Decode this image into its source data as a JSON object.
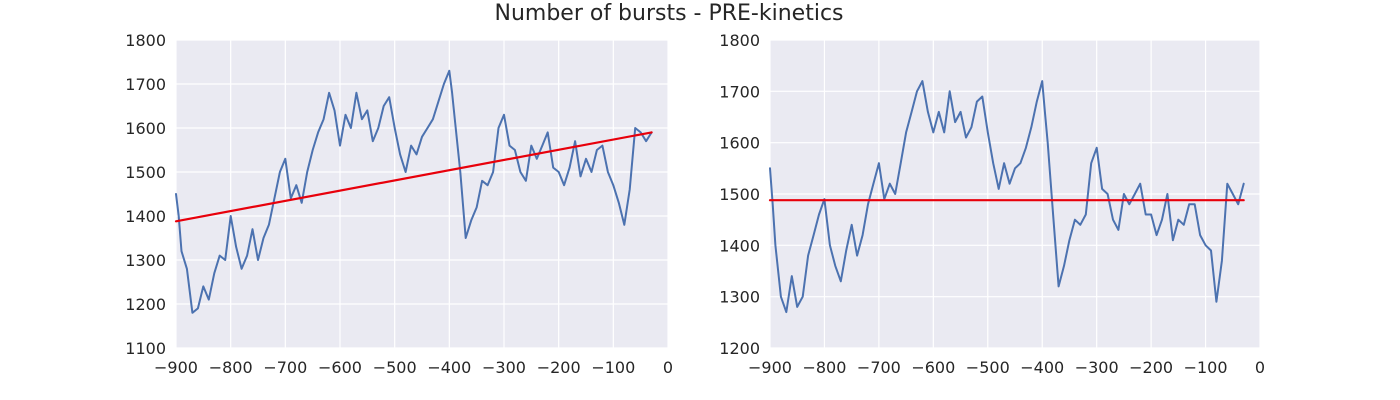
{
  "figure": {
    "title": "Number of bursts - PRE-kinetics"
  },
  "chart_data": [
    {
      "type": "line",
      "xlim": [
        -900,
        0
      ],
      "ylim": [
        1100,
        1800
      ],
      "xticks": [
        -900,
        -800,
        -700,
        -600,
        -500,
        -400,
        -300,
        -200,
        -100,
        0
      ],
      "yticks": [
        1100,
        1200,
        1300,
        1400,
        1500,
        1600,
        1700,
        1800
      ],
      "grid": true,
      "series": [
        {
          "color": "#4c72b0",
          "x": [
            -900,
            -895,
            -890,
            -880,
            -870,
            -860,
            -850,
            -840,
            -830,
            -820,
            -810,
            -800,
            -790,
            -780,
            -770,
            -760,
            -750,
            -740,
            -730,
            -720,
            -710,
            -700,
            -690,
            -680,
            -670,
            -660,
            -650,
            -640,
            -630,
            -620,
            -610,
            -600,
            -590,
            -580,
            -570,
            -560,
            -550,
            -540,
            -530,
            -520,
            -510,
            -500,
            -490,
            -480,
            -470,
            -460,
            -450,
            -440,
            -430,
            -420,
            -410,
            -400,
            -395,
            -390,
            -380,
            -370,
            -360,
            -350,
            -340,
            -330,
            -320,
            -310,
            -300,
            -290,
            -280,
            -270,
            -260,
            -250,
            -240,
            -230,
            -220,
            -210,
            -200,
            -190,
            -180,
            -170,
            -160,
            -150,
            -140,
            -130,
            -120,
            -110,
            -100,
            -90,
            -80,
            -70,
            -60,
            -50,
            -40,
            -30
          ],
          "y": [
            1450,
            1400,
            1320,
            1280,
            1180,
            1190,
            1240,
            1210,
            1270,
            1310,
            1300,
            1400,
            1330,
            1280,
            1310,
            1370,
            1300,
            1350,
            1380,
            1440,
            1500,
            1530,
            1440,
            1470,
            1430,
            1500,
            1550,
            1590,
            1620,
            1680,
            1640,
            1560,
            1630,
            1600,
            1680,
            1620,
            1640,
            1570,
            1600,
            1650,
            1670,
            1600,
            1540,
            1500,
            1560,
            1540,
            1580,
            1600,
            1620,
            1660,
            1700,
            1730,
            1680,
            1620,
            1500,
            1350,
            1390,
            1420,
            1480,
            1470,
            1500,
            1600,
            1630,
            1560,
            1550,
            1500,
            1480,
            1560,
            1530,
            1560,
            1590,
            1510,
            1500,
            1470,
            1510,
            1570,
            1490,
            1530,
            1500,
            1550,
            1560,
            1500,
            1470,
            1430,
            1380,
            1460,
            1600,
            1590,
            1570,
            1590
          ]
        },
        {
          "color": "#e8000b",
          "x": [
            -900,
            -30
          ],
          "y": [
            1388,
            1590
          ]
        }
      ]
    },
    {
      "type": "line",
      "xlim": [
        -900,
        0
      ],
      "ylim": [
        1200,
        1800
      ],
      "xticks": [
        -900,
        -800,
        -700,
        -600,
        -500,
        -400,
        -300,
        -200,
        -100,
        0
      ],
      "yticks": [
        1200,
        1300,
        1400,
        1500,
        1600,
        1700,
        1800
      ],
      "grid": true,
      "series": [
        {
          "color": "#4c72b0",
          "x": [
            -900,
            -895,
            -890,
            -880,
            -870,
            -860,
            -850,
            -840,
            -830,
            -820,
            -810,
            -800,
            -790,
            -780,
            -770,
            -760,
            -750,
            -740,
            -730,
            -720,
            -710,
            -700,
            -690,
            -680,
            -670,
            -660,
            -650,
            -640,
            -630,
            -620,
            -610,
            -600,
            -590,
            -580,
            -570,
            -560,
            -550,
            -540,
            -530,
            -520,
            -510,
            -500,
            -490,
            -480,
            -470,
            -460,
            -450,
            -440,
            -430,
            -420,
            -410,
            -400,
            -395,
            -390,
            -380,
            -370,
            -360,
            -350,
            -340,
            -330,
            -320,
            -310,
            -300,
            -290,
            -280,
            -270,
            -260,
            -250,
            -240,
            -230,
            -220,
            -210,
            -200,
            -190,
            -180,
            -170,
            -160,
            -150,
            -140,
            -130,
            -120,
            -110,
            -100,
            -90,
            -80,
            -70,
            -60,
            -50,
            -40,
            -30
          ],
          "y": [
            1550,
            1480,
            1400,
            1300,
            1270,
            1340,
            1280,
            1300,
            1380,
            1420,
            1460,
            1490,
            1400,
            1360,
            1330,
            1390,
            1440,
            1380,
            1420,
            1480,
            1520,
            1560,
            1490,
            1520,
            1500,
            1560,
            1620,
            1660,
            1700,
            1720,
            1660,
            1620,
            1660,
            1620,
            1700,
            1640,
            1660,
            1610,
            1630,
            1680,
            1690,
            1620,
            1560,
            1510,
            1560,
            1520,
            1550,
            1560,
            1590,
            1630,
            1680,
            1720,
            1660,
            1600,
            1460,
            1320,
            1360,
            1410,
            1450,
            1440,
            1460,
            1560,
            1590,
            1510,
            1500,
            1450,
            1430,
            1500,
            1480,
            1500,
            1520,
            1460,
            1460,
            1420,
            1450,
            1500,
            1410,
            1450,
            1440,
            1480,
            1480,
            1420,
            1400,
            1390,
            1290,
            1370,
            1520,
            1500,
            1480,
            1520
          ]
        },
        {
          "color": "#e8000b",
          "x": [
            -900,
            -30
          ],
          "y": [
            1488,
            1488
          ]
        }
      ]
    }
  ]
}
